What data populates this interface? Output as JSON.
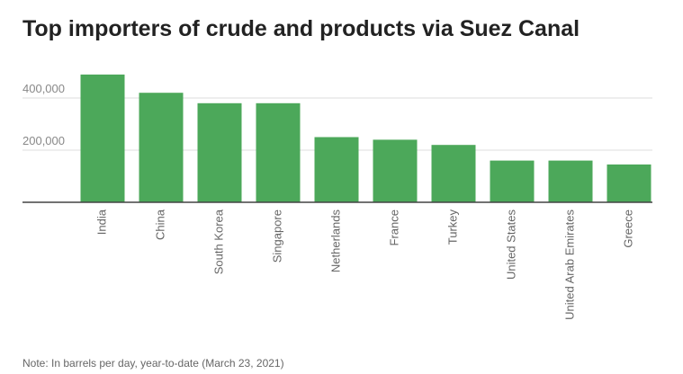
{
  "chart_data": {
    "type": "bar",
    "title": "Top importers of crude and products via Suez Canal",
    "categories": [
      "India",
      "China",
      "South Korea",
      "Singapore",
      "Netherlands",
      "France",
      "Turkey",
      "United States",
      "United Arab Emirates",
      "Greece"
    ],
    "values": [
      490000,
      420000,
      380000,
      380000,
      250000,
      240000,
      220000,
      160000,
      160000,
      145000
    ],
    "color": "#4ca85a",
    "ylim": [
      0,
      500000
    ],
    "yticks": [
      {
        "value": 200000,
        "label": "200,000"
      },
      {
        "value": 400000,
        "label": "400,000"
      }
    ],
    "grid": true,
    "note": "Note: In barrels per day, year-to-date (March 23, 2021)"
  }
}
